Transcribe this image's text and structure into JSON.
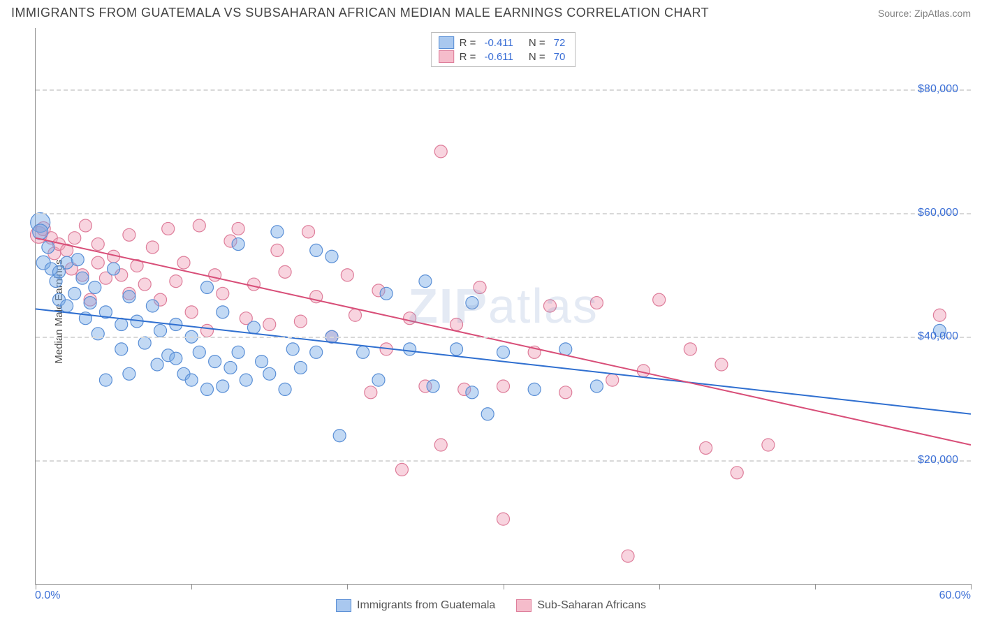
{
  "header": {
    "title": "IMMIGRANTS FROM GUATEMALA VS SUBSAHARAN AFRICAN MEDIAN MALE EARNINGS CORRELATION CHART",
    "source": "Source: ZipAtlas.com"
  },
  "watermark": {
    "pre": "ZIP",
    "post": "atlas"
  },
  "chart": {
    "type": "scatter",
    "background_color": "#ffffff",
    "grid_color": "#d8d8d8",
    "axis_color": "#909090",
    "tick_label_color": "#3b6fd6",
    "y_axis_label": "Median Male Earnings",
    "y_axis_label_fontsize": 15,
    "xlim": [
      0,
      60
    ],
    "ylim": [
      0,
      90000
    ],
    "y_gridlines": [
      20000,
      40000,
      60000,
      80000
    ],
    "y_tick_labels": [
      "$20,000",
      "$40,000",
      "$60,000",
      "$80,000"
    ],
    "x_ticks_pct": [
      0,
      10,
      20,
      30,
      40,
      50,
      60
    ],
    "x_tick_labels": {
      "left": "0.0%",
      "right": "60.0%"
    },
    "legend_top": {
      "border_color": "#bcbcbc",
      "rows": [
        {
          "swatch_fill": "#a9c8ef",
          "swatch_stroke": "#5a8fd6",
          "r_label": "R =",
          "r_val": "-0.411",
          "n_label": "N =",
          "n_val": "72"
        },
        {
          "swatch_fill": "#f5bccb",
          "swatch_stroke": "#de7d9a",
          "r_label": "R =",
          "r_val": "-0.611",
          "n_label": "N =",
          "n_val": "70"
        }
      ]
    },
    "legend_bottom": {
      "items": [
        {
          "swatch_fill": "#a9c8ef",
          "swatch_stroke": "#5a8fd6",
          "label": "Immigrants from Guatemala"
        },
        {
          "swatch_fill": "#f5bccb",
          "swatch_stroke": "#de7d9a",
          "label": "Sub-Saharan Africans"
        }
      ]
    },
    "series": {
      "guatemala": {
        "color_fill": "rgba(120,170,230,0.45)",
        "color_stroke": "#5a8fd6",
        "marker_r": 9,
        "trend": {
          "x1": 0,
          "y1": 44500,
          "x2": 60,
          "y2": 27500,
          "color": "#2f6fd0",
          "width": 2
        },
        "points": [
          [
            0.3,
            58500,
            14
          ],
          [
            0.3,
            57000,
            11
          ],
          [
            0.5,
            52000,
            10
          ],
          [
            0.8,
            54500,
            9
          ],
          [
            1.0,
            51000,
            9
          ],
          [
            1.3,
            49000,
            9
          ],
          [
            1.5,
            50500,
            9
          ],
          [
            1.5,
            46000,
            9
          ],
          [
            2.0,
            45000,
            9
          ],
          [
            2.0,
            52000,
            9
          ],
          [
            2.5,
            47000,
            9
          ],
          [
            2.7,
            52500,
            9
          ],
          [
            3.0,
            49500,
            9
          ],
          [
            3.2,
            43000,
            9
          ],
          [
            3.5,
            45500,
            9
          ],
          [
            3.8,
            48000,
            9
          ],
          [
            4.0,
            40500,
            9
          ],
          [
            4.5,
            44000,
            9
          ],
          [
            4.5,
            33000,
            9
          ],
          [
            5.0,
            51000,
            9
          ],
          [
            5.5,
            42000,
            9
          ],
          [
            5.5,
            38000,
            9
          ],
          [
            6.0,
            46500,
            9
          ],
          [
            6.0,
            34000,
            9
          ],
          [
            6.5,
            42500,
            9
          ],
          [
            7.0,
            39000,
            9
          ],
          [
            7.5,
            45000,
            9
          ],
          [
            7.8,
            35500,
            9
          ],
          [
            8.0,
            41000,
            9
          ],
          [
            8.5,
            37000,
            9
          ],
          [
            9.0,
            36500,
            9
          ],
          [
            9.0,
            42000,
            9
          ],
          [
            9.5,
            34000,
            9
          ],
          [
            10.0,
            40000,
            9
          ],
          [
            10.0,
            33000,
            9
          ],
          [
            10.5,
            37500,
            9
          ],
          [
            11.0,
            31500,
            9
          ],
          [
            11.0,
            48000,
            9
          ],
          [
            11.5,
            36000,
            9
          ],
          [
            12.0,
            44000,
            9
          ],
          [
            12.0,
            32000,
            9
          ],
          [
            12.5,
            35000,
            9
          ],
          [
            13.0,
            37500,
            9
          ],
          [
            13.0,
            55000,
            9
          ],
          [
            13.5,
            33000,
            9
          ],
          [
            14.0,
            41500,
            9
          ],
          [
            14.5,
            36000,
            9
          ],
          [
            15.0,
            34000,
            9
          ],
          [
            15.5,
            57000,
            9
          ],
          [
            16.0,
            31500,
            9
          ],
          [
            16.5,
            38000,
            9
          ],
          [
            17.0,
            35000,
            9
          ],
          [
            18.0,
            54000,
            9
          ],
          [
            18.0,
            37500,
            9
          ],
          [
            19.0,
            53000,
            9
          ],
          [
            19.0,
            40000,
            9
          ],
          [
            19.5,
            24000,
            9
          ],
          [
            21.0,
            37500,
            9
          ],
          [
            22.0,
            33000,
            9
          ],
          [
            22.5,
            47000,
            9
          ],
          [
            24.0,
            38000,
            9
          ],
          [
            25.0,
            49000,
            9
          ],
          [
            25.5,
            32000,
            9
          ],
          [
            27.0,
            38000,
            9
          ],
          [
            28.0,
            45500,
            9
          ],
          [
            28.0,
            31000,
            9
          ],
          [
            29.0,
            27500,
            9
          ],
          [
            30.0,
            37500,
            9
          ],
          [
            32.0,
            31500,
            9
          ],
          [
            34.0,
            38000,
            9
          ],
          [
            36.0,
            32000,
            9
          ],
          [
            58.0,
            41000,
            9
          ]
        ]
      },
      "subsaharan": {
        "color_fill": "rgba(240,160,185,0.45)",
        "color_stroke": "#de7d9a",
        "marker_r": 9,
        "trend": {
          "x1": 0,
          "y1": 56000,
          "x2": 60,
          "y2": 22500,
          "color": "#d84e78",
          "width": 2
        },
        "points": [
          [
            0.2,
            56500,
            12
          ],
          [
            0.5,
            57500,
            10
          ],
          [
            1.0,
            56000,
            9
          ],
          [
            1.2,
            53500,
            9
          ],
          [
            1.5,
            55000,
            9
          ],
          [
            2.0,
            54000,
            9
          ],
          [
            2.3,
            51000,
            9
          ],
          [
            2.5,
            56000,
            9
          ],
          [
            3.0,
            50000,
            9
          ],
          [
            3.2,
            58000,
            9
          ],
          [
            3.5,
            46000,
            9
          ],
          [
            4.0,
            52000,
            9
          ],
          [
            4.0,
            55000,
            9
          ],
          [
            4.5,
            49500,
            9
          ],
          [
            5.0,
            53000,
            9
          ],
          [
            5.5,
            50000,
            9
          ],
          [
            6.0,
            56500,
            9
          ],
          [
            6.0,
            47000,
            9
          ],
          [
            6.5,
            51500,
            9
          ],
          [
            7.0,
            48500,
            9
          ],
          [
            7.5,
            54500,
            9
          ],
          [
            8.0,
            46000,
            9
          ],
          [
            8.5,
            57500,
            9
          ],
          [
            9.0,
            49000,
            9
          ],
          [
            9.5,
            52000,
            9
          ],
          [
            10.0,
            44000,
            9
          ],
          [
            10.5,
            58000,
            9
          ],
          [
            11.0,
            41000,
            9
          ],
          [
            11.5,
            50000,
            9
          ],
          [
            12.0,
            47000,
            9
          ],
          [
            12.5,
            55500,
            9
          ],
          [
            13.0,
            57500,
            9
          ],
          [
            13.5,
            43000,
            9
          ],
          [
            14.0,
            48500,
            9
          ],
          [
            15.0,
            42000,
            9
          ],
          [
            15.5,
            54000,
            9
          ],
          [
            16.0,
            50500,
            9
          ],
          [
            17.0,
            42500,
            9
          ],
          [
            17.5,
            57000,
            9
          ],
          [
            18.0,
            46500,
            9
          ],
          [
            19.0,
            40000,
            9
          ],
          [
            20.0,
            50000,
            9
          ],
          [
            20.5,
            43500,
            9
          ],
          [
            21.5,
            31000,
            9
          ],
          [
            22.0,
            47500,
            9
          ],
          [
            22.5,
            38000,
            9
          ],
          [
            23.5,
            18500,
            9
          ],
          [
            24.0,
            43000,
            9
          ],
          [
            25.0,
            32000,
            9
          ],
          [
            26.0,
            70000,
            9
          ],
          [
            26.0,
            22500,
            9
          ],
          [
            27.0,
            42000,
            9
          ],
          [
            27.5,
            31500,
            9
          ],
          [
            28.5,
            48000,
            9
          ],
          [
            30.0,
            32000,
            9
          ],
          [
            30.0,
            10500,
            9
          ],
          [
            32.0,
            37500,
            9
          ],
          [
            33.0,
            45000,
            9
          ],
          [
            34.0,
            31000,
            9
          ],
          [
            36.0,
            45500,
            9
          ],
          [
            37.0,
            33000,
            9
          ],
          [
            38.0,
            4500,
            9
          ],
          [
            39.0,
            34500,
            9
          ],
          [
            40.0,
            46000,
            9
          ],
          [
            42.0,
            38000,
            9
          ],
          [
            43.0,
            22000,
            9
          ],
          [
            44.0,
            35500,
            9
          ],
          [
            45.0,
            18000,
            9
          ],
          [
            47.0,
            22500,
            9
          ],
          [
            58.0,
            43500,
            9
          ]
        ]
      }
    }
  }
}
